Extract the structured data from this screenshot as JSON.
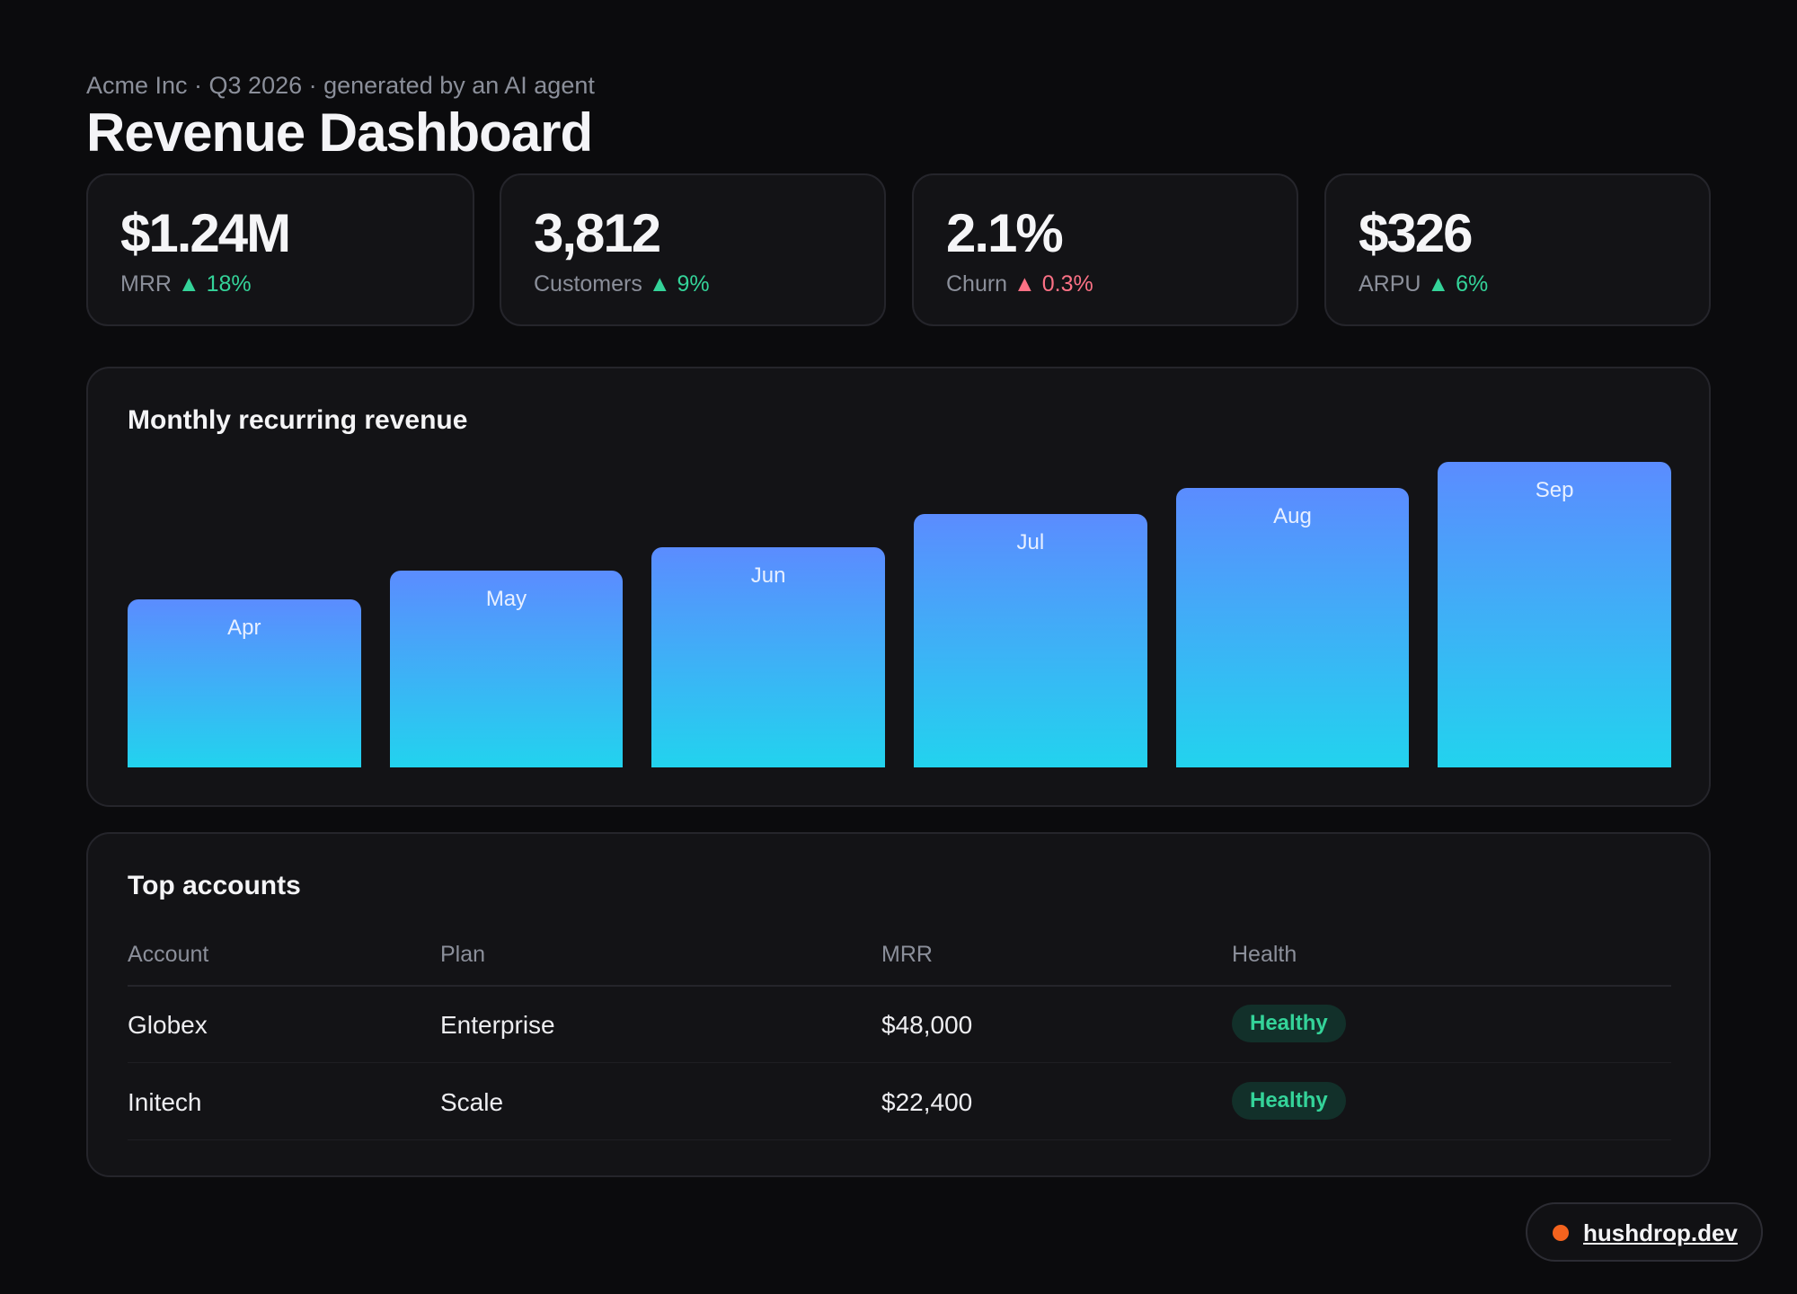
{
  "header": {
    "subtitle": "Acme Inc · Q3 2026 · generated by an AI agent",
    "title": "Revenue Dashboard"
  },
  "kpis": [
    {
      "value": "$1.24M",
      "label": "MRR",
      "delta": "▲ 18%",
      "delta_color": "#34d399"
    },
    {
      "value": "3,812",
      "label": "Customers",
      "delta": "▲ 9%",
      "delta_color": "#34d399"
    },
    {
      "value": "2.1%",
      "label": "Churn",
      "delta": "▲ 0.3%",
      "delta_color": "#fb7185"
    },
    {
      "value": "$326",
      "label": "ARPU",
      "delta": "▲ 6%",
      "delta_color": "#34d399"
    }
  ],
  "chart_panel": {
    "title": "Monthly recurring revenue"
  },
  "chart_data": {
    "type": "bar",
    "categories": [
      "Apr",
      "May",
      "Jun",
      "Jul",
      "Aug",
      "Sep"
    ],
    "values": [
      0.55,
      0.645,
      0.72,
      0.83,
      0.915,
      1.0
    ],
    "title": "",
    "xlabel": "",
    "ylabel": "",
    "ylim": [
      0,
      1.0
    ],
    "grid": false,
    "bar_gradient": [
      "#5b8cff",
      "#22d3ee"
    ]
  },
  "table": {
    "title": "Top accounts",
    "columns": [
      "Account",
      "Plan",
      "MRR",
      "Health"
    ],
    "rows": [
      {
        "account": "Globex",
        "plan": "Enterprise",
        "mrr": "$48,000",
        "health": "Healthy"
      },
      {
        "account": "Initech",
        "plan": "Scale",
        "mrr": "$22,400",
        "health": "Healthy"
      }
    ]
  },
  "brand": {
    "link": "hushdrop.dev",
    "dot_color": "#f4631e"
  }
}
